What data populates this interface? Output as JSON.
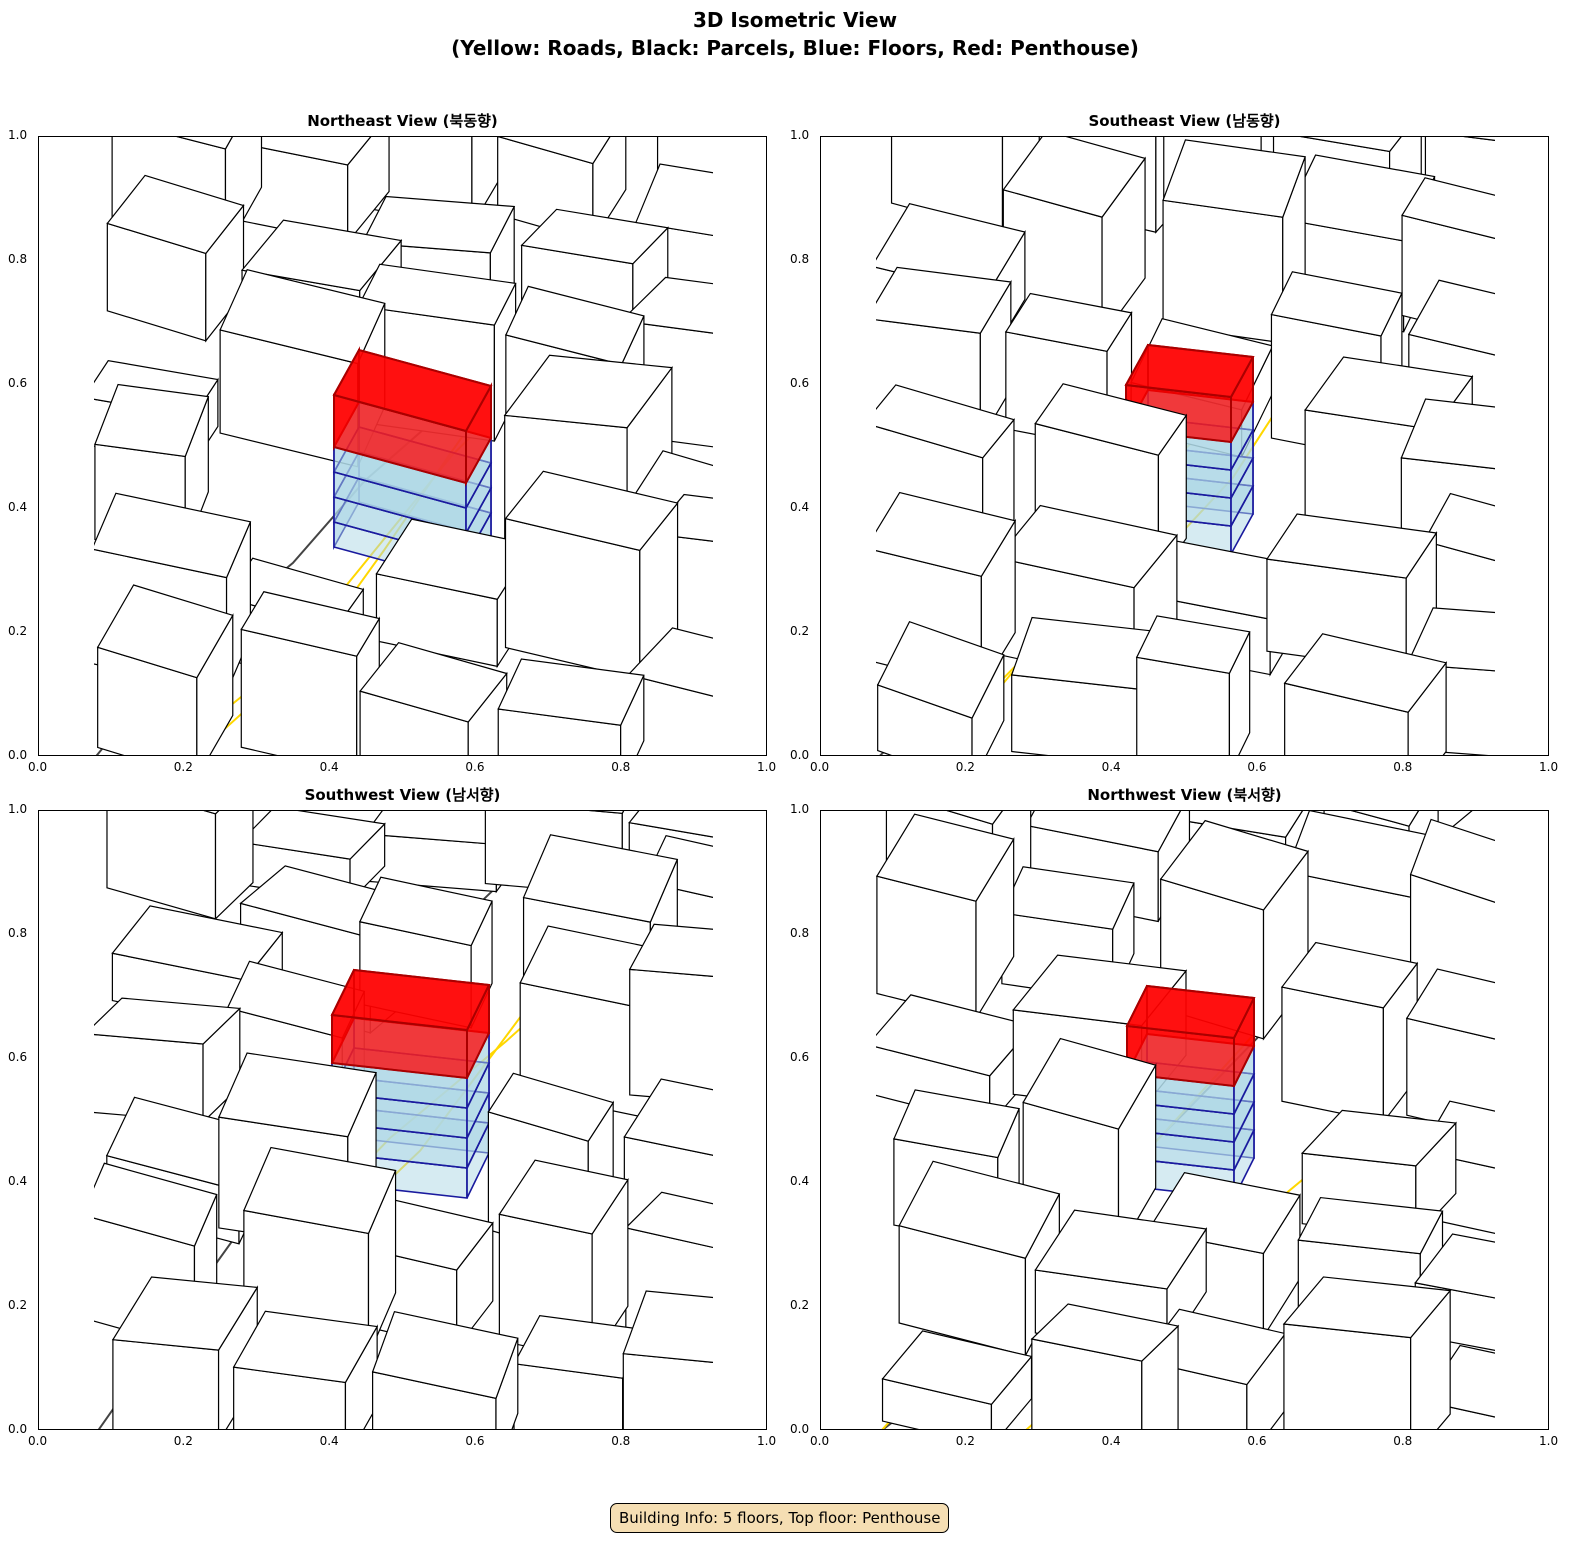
{
  "title_line1": "3D Isometric View",
  "title_line2": "(Yellow: Roads, Black: Parcels, Blue: Floors, Red: Penthouse)",
  "panels": [
    {
      "title": "Northeast View (북동향)"
    },
    {
      "title": "Southeast View (남동향)"
    },
    {
      "title": "Southwest View (남서향)"
    },
    {
      "title": "Northwest View (북서향)"
    }
  ],
  "axis": {
    "ticks": [
      "0.0",
      "0.2",
      "0.4",
      "0.6",
      "0.8",
      "1.0"
    ],
    "xlim": [
      0,
      1
    ],
    "ylim": [
      0,
      1
    ]
  },
  "colors": {
    "roads": "#ffd700",
    "parcels": "#000000",
    "floors": "#add8e6",
    "floor_edges": "#1a1a9e",
    "penthouse": "#ff0000",
    "info_box": "#f5deb3"
  },
  "building": {
    "floors": 5,
    "top_floor": "Penthouse"
  },
  "info_text": "Building Info: 5 floors, Top floor: Penthouse"
}
